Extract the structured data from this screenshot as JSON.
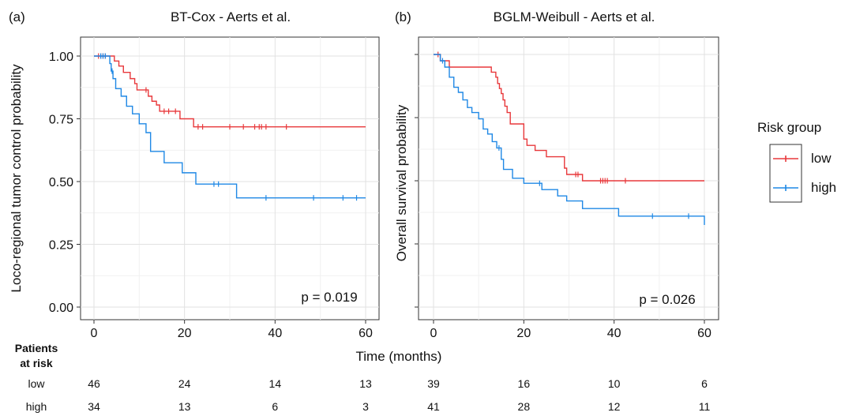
{
  "chart_data": [
    {
      "panel_label": "(a)",
      "type": "line",
      "title": "BT-Cox - Aerts et al.",
      "ylabel": "Loco-regional tumor control probability",
      "xlim": [
        0,
        60
      ],
      "ylim": [
        0,
        1
      ],
      "xticks": [
        "0",
        "20",
        "40",
        "60"
      ],
      "yticks": [
        "0.00",
        "0.25",
        "0.50",
        "0.75",
        "1.00"
      ],
      "pvalue": "p = 0.019",
      "series": [
        {
          "name": "low",
          "color": "#e8383b",
          "x": [
            0,
            3.0,
            4.5,
            5.5,
            6.5,
            8.0,
            9.0,
            9.5,
            10.0,
            12.0,
            12.8,
            13.8,
            14.5,
            19.0,
            22.0,
            60
          ],
          "y": [
            1.0,
            1.0,
            0.98,
            0.96,
            0.935,
            0.91,
            0.89,
            0.865,
            0.865,
            0.84,
            0.82,
            0.805,
            0.78,
            0.75,
            0.718,
            0.718
          ],
          "censor_x": [
            1.0,
            1.5,
            2.0,
            2.5,
            11.5,
            15.5,
            16.5,
            18.0,
            23.0,
            24.0,
            30.0,
            33.0,
            35.5,
            36.5,
            37.0,
            38.0,
            42.5
          ]
        },
        {
          "name": "high",
          "color": "#1f88e5",
          "x": [
            0,
            3.5,
            3.8,
            4.2,
            4.8,
            6.0,
            7.2,
            8.5,
            10.0,
            11.5,
            12.5,
            15.5,
            19.5,
            22.5,
            31.5,
            60
          ],
          "y": [
            1.0,
            0.97,
            0.94,
            0.91,
            0.87,
            0.84,
            0.8,
            0.77,
            0.73,
            0.695,
            0.62,
            0.575,
            0.535,
            0.49,
            0.435,
            0.435
          ],
          "censor_x": [
            1.5,
            2.0,
            2.5,
            4.0,
            26.5,
            27.5,
            38.0,
            48.5,
            55.0,
            58.0
          ]
        }
      ],
      "at_risk": {
        "low": [
          "46",
          "24",
          "14",
          "13"
        ],
        "high": [
          "34",
          "13",
          "6",
          "3"
        ]
      }
    },
    {
      "panel_label": "(b)",
      "type": "line",
      "title": "BGLM-Weibull - Aerts et al.",
      "ylabel": "Overall survival probability",
      "xlim": [
        0,
        60
      ],
      "ylim": [
        0,
        1
      ],
      "xticks": [
        "0",
        "20",
        "40",
        "60"
      ],
      "pvalue": "p = 0.026",
      "series": [
        {
          "name": "low",
          "color": "#e8383b",
          "x": [
            0,
            1.5,
            3.5,
            12.8,
            13.8,
            14.2,
            14.6,
            15.0,
            15.4,
            15.8,
            16.3,
            17.0,
            20.0,
            20.7,
            22.5,
            25.0,
            29.0,
            29.5,
            33.0,
            60
          ],
          "y": [
            1.0,
            0.975,
            0.95,
            0.93,
            0.91,
            0.885,
            0.865,
            0.845,
            0.82,
            0.795,
            0.77,
            0.725,
            0.665,
            0.64,
            0.62,
            0.595,
            0.55,
            0.525,
            0.5,
            0.5
          ],
          "censor_x": [
            1.0,
            31.5,
            32.0,
            37.0,
            37.5,
            38.0,
            38.5,
            42.5
          ]
        },
        {
          "name": "high",
          "color": "#1f88e5",
          "x": [
            0,
            1.5,
            2.5,
            3.5,
            4.5,
            5.5,
            6.5,
            7.5,
            8.5,
            10.0,
            11.0,
            12.0,
            13.0,
            14.0,
            15.0,
            15.5,
            17.5,
            20.0,
            24.0,
            27.5,
            29.5,
            33.0,
            41.0,
            60
          ],
          "y": [
            1.0,
            0.975,
            0.95,
            0.91,
            0.87,
            0.85,
            0.82,
            0.79,
            0.77,
            0.745,
            0.705,
            0.685,
            0.655,
            0.63,
            0.585,
            0.545,
            0.51,
            0.49,
            0.465,
            0.44,
            0.42,
            0.39,
            0.36,
            0.325
          ],
          "censor_x": [
            2.0,
            14.5,
            23.5,
            48.5,
            56.5
          ]
        }
      ],
      "at_risk": {
        "low": [
          "39",
          "16",
          "10",
          "6"
        ],
        "high": [
          "41",
          "28",
          "12",
          "11"
        ]
      }
    }
  ],
  "shared": {
    "xlabel": "Time (months)",
    "legend_title": "Risk group",
    "legend_placement": "right",
    "legend_items": [
      {
        "name": "low",
        "color": "#e8383b"
      },
      {
        "name": "high",
        "color": "#1f88e5"
      }
    ],
    "risk_table_title_line1": "Patients",
    "risk_table_title_line2": "at risk",
    "risk_rows": [
      "low",
      "high"
    ]
  }
}
